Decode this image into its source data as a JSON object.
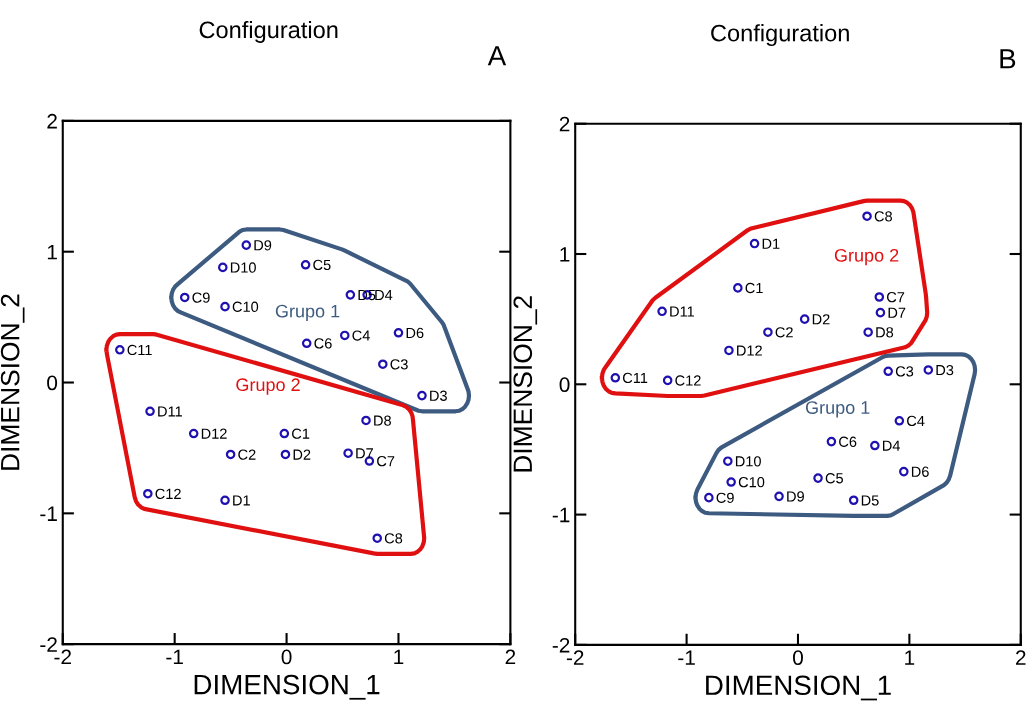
{
  "chart_data": [
    {
      "type": "scatter",
      "title": "Configuration",
      "xlabel": "DIMENSION_1",
      "ylabel": "DIMENSION_2",
      "marker": "circle",
      "grid": false,
      "legend": false,
      "xlim": [
        -2,
        2
      ],
      "ylim": [
        -2,
        2
      ],
      "xticks": [
        -2,
        -1,
        0,
        1,
        2
      ],
      "yticks": [
        -2,
        -1,
        0,
        1,
        2
      ],
      "series": [
        {
          "color": "#1f10b0",
          "x": [
            -0.36,
            -0.57,
            0.17,
            -0.91,
            -0.55,
            0.57,
            0.72,
            0.52,
            1.0,
            0.18,
            0.86,
            1.21
          ],
          "values": [
            1.05,
            0.88,
            0.9,
            0.65,
            0.58,
            0.67,
            0.67,
            0.36,
            0.38,
            0.3,
            0.14,
            -0.1
          ]
        },
        {
          "color": "#1f10b0",
          "x": [
            -1.49,
            -1.22,
            -0.83,
            -0.02,
            -0.5,
            -0.01,
            0.71,
            0.55,
            0.74,
            -1.24,
            -0.55,
            0.81
          ],
          "values": [
            0.25,
            -0.22,
            -0.39,
            -0.39,
            -0.55,
            -0.55,
            -0.29,
            -0.54,
            -0.6,
            -0.85,
            -0.9,
            -1.19
          ]
        }
      ],
      "annotations": [
        "A",
        "Grupo 1",
        "Grupo 2",
        {
          "text": "D9",
          "x": -0.36,
          "y": 1.05
        },
        {
          "text": "D10",
          "x": -0.57,
          "y": 0.88
        },
        {
          "text": "C5",
          "x": 0.17,
          "y": 0.9
        },
        {
          "text": "C9",
          "x": -0.91,
          "y": 0.65
        },
        {
          "text": "C10",
          "x": -0.55,
          "y": 0.58
        },
        {
          "text": "D5",
          "x": 0.57,
          "y": 0.67
        },
        {
          "text": "D4",
          "x": 0.72,
          "y": 0.67
        },
        {
          "text": "C4",
          "x": 0.52,
          "y": 0.36
        },
        {
          "text": "D6",
          "x": 1.0,
          "y": 0.38
        },
        {
          "text": "C6",
          "x": 0.18,
          "y": 0.3
        },
        {
          "text": "C3",
          "x": 0.86,
          "y": 0.14
        },
        {
          "text": "D3",
          "x": 1.21,
          "y": -0.1
        },
        {
          "text": "C11",
          "x": -1.49,
          "y": 0.25
        },
        {
          "text": "D11",
          "x": -1.22,
          "y": -0.22
        },
        {
          "text": "D12",
          "x": -0.83,
          "y": -0.39
        },
        {
          "text": "C1",
          "x": -0.02,
          "y": -0.39
        },
        {
          "text": "C2",
          "x": -0.5,
          "y": -0.55
        },
        {
          "text": "D2",
          "x": -0.01,
          "y": -0.55
        },
        {
          "text": "D8",
          "x": 0.71,
          "y": -0.29
        },
        {
          "text": "D7",
          "x": 0.55,
          "y": -0.54
        },
        {
          "text": "C7",
          "x": 0.74,
          "y": -0.6
        },
        {
          "text": "C12",
          "x": -1.24,
          "y": -0.85
        },
        {
          "text": "D1",
          "x": -0.55,
          "y": -0.9
        },
        {
          "text": "C8",
          "x": 0.81,
          "y": -1.19
        }
      ]
    },
    {
      "type": "scatter",
      "title": "Configuration",
      "xlabel": "DIMENSION_1",
      "ylabel": "DIMENSION_2",
      "marker": "circle",
      "grid": false,
      "legend": false,
      "xlim": [
        -2,
        2
      ],
      "ylim": [
        -2,
        2
      ],
      "xticks": [
        -2,
        -1,
        0,
        1,
        2
      ],
      "yticks": [
        -2,
        -1,
        0,
        1,
        2
      ],
      "series": [
        {
          "color": "#1f10b0",
          "x": [
            0.81,
            1.17,
            0.91,
            0.3,
            0.69,
            -0.63,
            0.95,
            -0.6,
            0.18,
            -0.17,
            -0.8,
            0.5
          ],
          "values": [
            0.1,
            0.11,
            -0.28,
            -0.44,
            -0.47,
            -0.59,
            -0.67,
            -0.75,
            -0.72,
            -0.86,
            -0.87,
            -0.89
          ]
        },
        {
          "color": "#1f10b0",
          "x": [
            0.62,
            -0.39,
            -0.54,
            -1.22,
            0.73,
            0.74,
            0.06,
            -0.27,
            0.63,
            -0.62,
            -1.64,
            -1.17
          ],
          "values": [
            1.29,
            1.08,
            0.74,
            0.56,
            0.67,
            0.55,
            0.5,
            0.4,
            0.4,
            0.26,
            0.05,
            0.03
          ]
        }
      ],
      "annotations": [
        "B",
        "Grupo 1",
        "Grupo 2",
        {
          "text": "C3",
          "x": 0.81,
          "y": 0.1
        },
        {
          "text": "D3",
          "x": 1.17,
          "y": 0.11
        },
        {
          "text": "C4",
          "x": 0.91,
          "y": -0.28
        },
        {
          "text": "C6",
          "x": 0.3,
          "y": -0.44
        },
        {
          "text": "D4",
          "x": 0.69,
          "y": -0.47
        },
        {
          "text": "D10",
          "x": -0.63,
          "y": -0.59
        },
        {
          "text": "D6",
          "x": 0.95,
          "y": -0.67
        },
        {
          "text": "C10",
          "x": -0.6,
          "y": -0.75
        },
        {
          "text": "C5",
          "x": 0.18,
          "y": -0.72
        },
        {
          "text": "D9",
          "x": -0.17,
          "y": -0.86
        },
        {
          "text": "C9",
          "x": -0.8,
          "y": -0.87
        },
        {
          "text": "D5",
          "x": 0.5,
          "y": -0.89
        },
        {
          "text": "C8",
          "x": 0.62,
          "y": 1.29
        },
        {
          "text": "D1",
          "x": -0.39,
          "y": 1.08
        },
        {
          "text": "C1",
          "x": -0.54,
          "y": 0.74
        },
        {
          "text": "D11",
          "x": -1.22,
          "y": 0.56
        },
        {
          "text": "C7",
          "x": 0.73,
          "y": 0.67
        },
        {
          "text": "D7",
          "x": 0.74,
          "y": 0.55
        },
        {
          "text": "D2",
          "x": 0.06,
          "y": 0.5
        },
        {
          "text": "C2",
          "x": -0.27,
          "y": 0.4
        },
        {
          "text": "D8",
          "x": 0.63,
          "y": 0.4
        },
        {
          "text": "D12",
          "x": -0.62,
          "y": 0.26
        },
        {
          "text": "C11",
          "x": -1.64,
          "y": 0.05
        },
        {
          "text": "C12",
          "x": -1.17,
          "y": 0.03
        }
      ]
    }
  ]
}
